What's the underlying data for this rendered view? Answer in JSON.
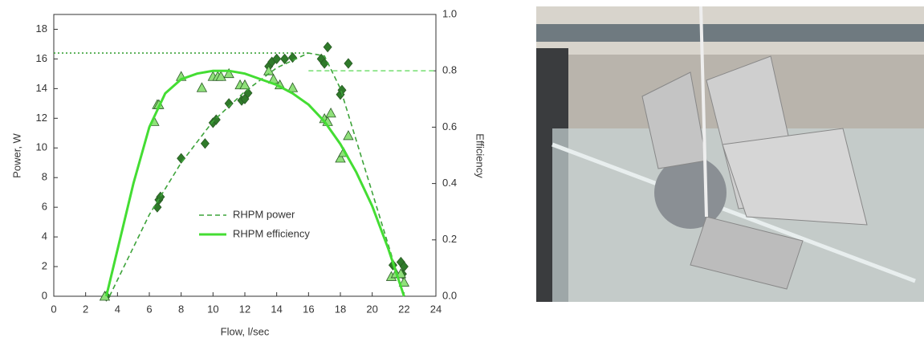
{
  "chart_data": {
    "type": "line",
    "xlabel": "Flow, l/sec",
    "ylabel": "Power, W",
    "y2label": "Efficiency",
    "xlim": [
      0,
      24
    ],
    "xticks": [
      0,
      2,
      4,
      6,
      8,
      10,
      12,
      14,
      16,
      18,
      20,
      22,
      24
    ],
    "ylim": [
      0,
      19
    ],
    "yticks": [
      0,
      2,
      4,
      6,
      8,
      10,
      12,
      14,
      16,
      18
    ],
    "y2lim": [
      0,
      1
    ],
    "y2ticks": [
      {
        "value": 0,
        "label": "0.0"
      },
      0.2,
      0.4,
      0.6,
      0.8,
      {
        "value": 1,
        "label": "1.0"
      }
    ],
    "legend": "center",
    "series": [
      {
        "kind": "scatter",
        "marker": "diamond",
        "color": "#2f7a2a",
        "x": [
          3.3,
          6.5,
          6.6,
          6.7,
          8,
          9.5,
          10,
          10.2,
          11,
          11.8,
          12,
          12.2,
          13.5,
          13.7,
          14,
          14.5,
          15,
          16.8,
          17,
          17.2,
          18,
          18.1,
          18.5,
          21.3,
          21.8,
          21.9,
          22
        ],
        "values": [
          0,
          6.0,
          6.5,
          6.7,
          9.3,
          10.3,
          11.7,
          11.9,
          13,
          13.2,
          13.3,
          13.7,
          15.5,
          15.8,
          16,
          16,
          16.1,
          16,
          15.7,
          16.8,
          13.6,
          13.9,
          15.7,
          2.1,
          2.3,
          1.5,
          2
        ]
      },
      {
        "kind": "scatter",
        "marker": "triangle",
        "color": "#8fe07a",
        "axis": "y2",
        "x": [
          3.2,
          6.3,
          6.5,
          6.6,
          8,
          9.3,
          10,
          10.3,
          10.5,
          11,
          11.7,
          12,
          13.5,
          13.8,
          14.2,
          15,
          17,
          17.2,
          17.4,
          18,
          18.2,
          18.5,
          21.2,
          21.5,
          21.8,
          22
        ],
        "values": [
          0,
          0.62,
          0.68,
          0.68,
          0.78,
          0.74,
          0.78,
          0.78,
          0.78,
          0.79,
          0.75,
          0.75,
          0.8,
          0.77,
          0.75,
          0.74,
          0.63,
          0.62,
          0.65,
          0.49,
          0.51,
          0.57,
          0.07,
          0.08,
          0.08,
          0.05
        ]
      },
      {
        "kind": "line",
        "dash": "dotted",
        "color": "#3da33a",
        "x": [
          0,
          16
        ],
        "values": [
          16.4,
          16.4
        ]
      },
      {
        "kind": "line",
        "dash": "dashed",
        "color": "#7ee07a",
        "axis": "y2",
        "x": [
          16,
          24
        ],
        "values": [
          0.8,
          0.8
        ]
      },
      {
        "name": "RHPM power",
        "kind": "line",
        "dash": "dashed",
        "color": "#3da33a",
        "x": [
          3.5,
          6,
          8,
          10,
          12,
          14,
          16,
          17,
          18,
          19,
          20,
          21,
          22
        ],
        "values": [
          0,
          5.5,
          9,
          11.8,
          13.8,
          15.4,
          16.4,
          16.2,
          14,
          10.5,
          7,
          3.5,
          0
        ]
      },
      {
        "name": "RHPM efficiency",
        "kind": "line",
        "dash": "solid",
        "color": "#44dd33",
        "axis": "y2",
        "x": [
          3.3,
          5,
          6,
          7,
          8,
          9,
          10,
          11,
          12,
          13,
          14,
          15,
          16,
          17,
          18,
          19,
          20,
          21,
          22
        ],
        "values": [
          0,
          0.4,
          0.6,
          0.72,
          0.77,
          0.79,
          0.8,
          0.8,
          0.79,
          0.77,
          0.75,
          0.72,
          0.68,
          0.62,
          0.54,
          0.44,
          0.32,
          0.17,
          0
        ]
      }
    ]
  }
}
